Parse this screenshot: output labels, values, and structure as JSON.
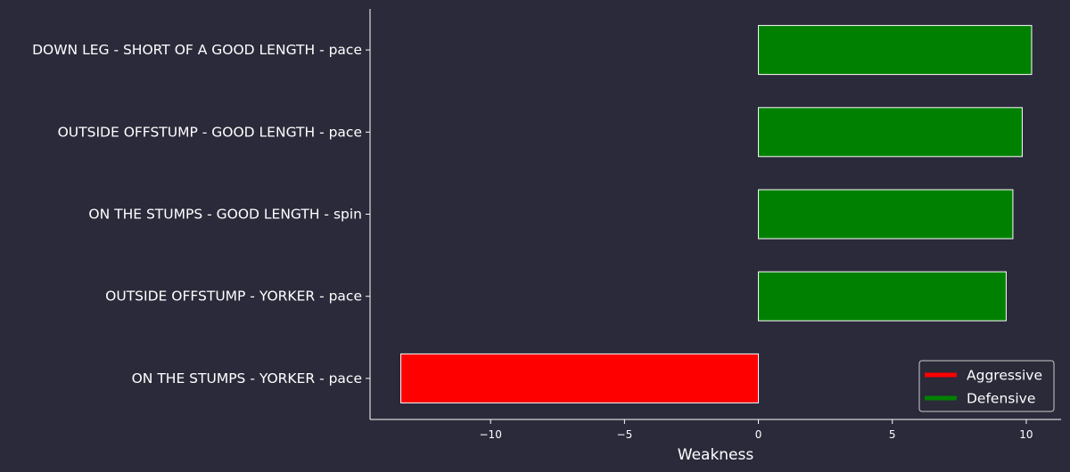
{
  "chart_data": {
    "type": "bar",
    "orientation": "horizontal",
    "categories": [
      "DOWN LEG - SHORT OF A GOOD LENGTH - pace",
      "OUTSIDE OFFSTUMP - GOOD LENGTH - pace",
      "ON THE STUMPS - GOOD LENGTH - spin",
      "OUTSIDE OFFSTUMP - YORKER - pace",
      "ON THE STUMPS - YORKER - pace"
    ],
    "values": [
      10.2,
      9.85,
      9.5,
      9.25,
      -13.35
    ],
    "bar_colors": [
      "#008000",
      "#008000",
      "#008000",
      "#008000",
      "#ff0000"
    ],
    "title": "",
    "xlabel": "Weakness",
    "ylabel": "",
    "xlim": [
      -14.5,
      11.3
    ],
    "xticks": [
      -10,
      -5,
      0,
      5,
      10
    ],
    "xtick_labels": [
      "−10",
      "−5",
      "0",
      "5",
      "10"
    ],
    "grid": false,
    "legend": {
      "position": "lower-right",
      "entries": [
        {
          "label": "Aggressive",
          "color": "#ff0000"
        },
        {
          "label": "Defensive",
          "color": "#008000"
        }
      ]
    },
    "colors": {
      "background": "#2b2a3a",
      "axis": "#ffffff",
      "text": "#ffffff",
      "bar_edge": "#ffffff"
    }
  }
}
